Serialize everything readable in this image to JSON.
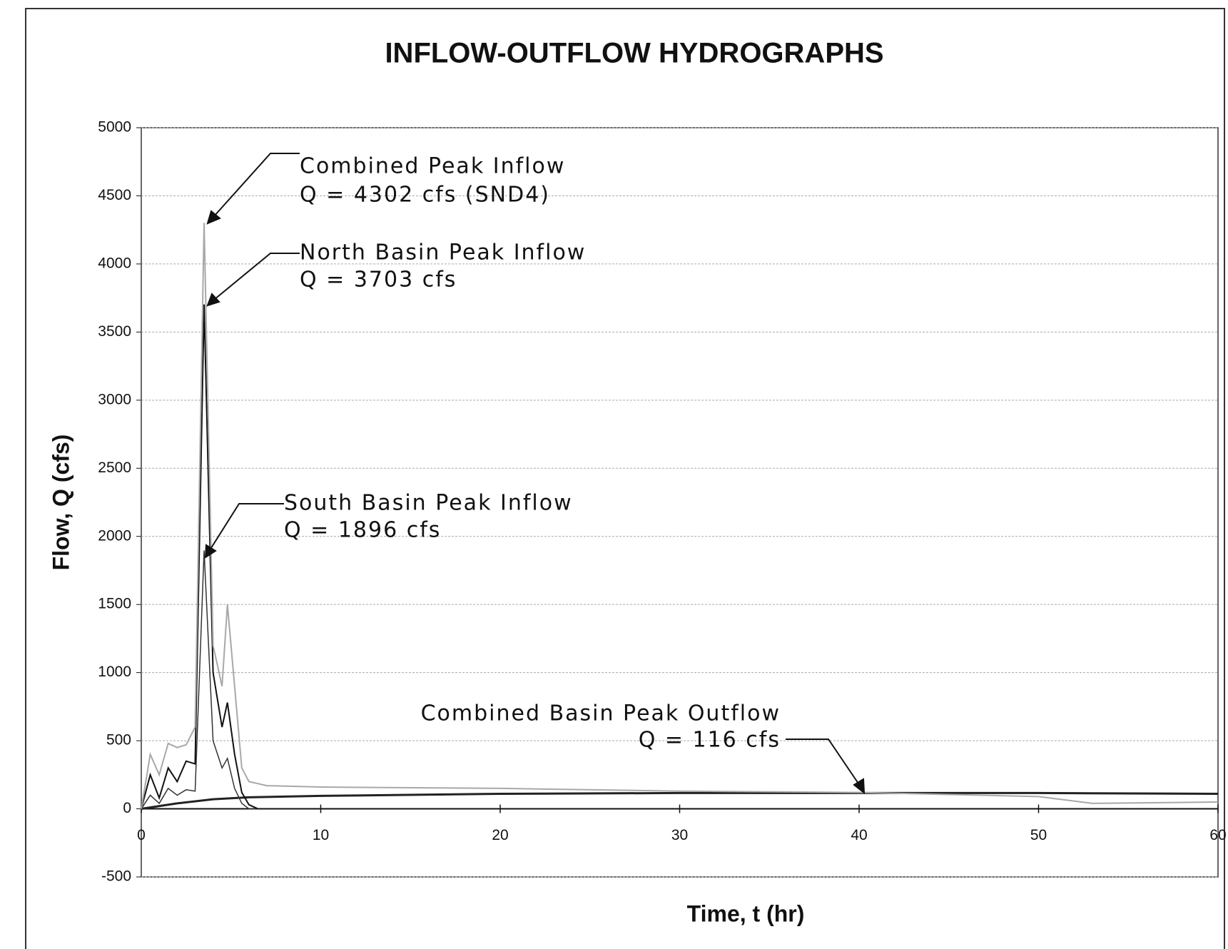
{
  "chart_data": {
    "type": "line",
    "title": "INFLOW-OUTFLOW HYDROGRAPHS",
    "x_label": "Time, t (hr)",
    "y_label": "Flow, Q (cfs)",
    "xlim": [
      0,
      60
    ],
    "xticks": [
      0,
      10,
      20,
      30,
      40,
      50,
      60
    ],
    "ylim": [
      -500,
      5000
    ],
    "yticks": [
      -500,
      0,
      500,
      1000,
      1500,
      2000,
      2500,
      3000,
      3500,
      4000,
      4500,
      5000
    ],
    "grid": true,
    "series": [
      {
        "color": "#a8a8a8",
        "width": 2,
        "x": [
          0,
          0.5,
          1,
          1.5,
          2,
          2.5,
          3,
          3.5,
          4,
          4.5,
          4.8,
          5.2,
          5.6,
          6,
          7,
          10,
          20,
          30,
          40,
          50,
          53,
          60
        ],
        "values": [
          0,
          400,
          250,
          480,
          450,
          470,
          600,
          4302,
          1200,
          900,
          1500,
          900,
          300,
          200,
          170,
          160,
          150,
          130,
          120,
          90,
          40,
          50
        ]
      },
      {
        "color": "#111111",
        "width": 2,
        "x": [
          0,
          0.5,
          1,
          1.5,
          2,
          2.5,
          3,
          3.5,
          4,
          4.5,
          4.8,
          5.2,
          5.6,
          6,
          6.5,
          60
        ],
        "values": [
          0,
          250,
          80,
          300,
          200,
          350,
          330,
          3703,
          1000,
          600,
          780,
          400,
          120,
          30,
          0,
          0
        ]
      },
      {
        "color": "#333333",
        "width": 1.5,
        "x": [
          0,
          0.5,
          1,
          1.5,
          2,
          2.5,
          3,
          3.5,
          4,
          4.5,
          4.8,
          5.2,
          5.6,
          6,
          60
        ],
        "values": [
          0,
          100,
          40,
          150,
          100,
          140,
          130,
          1896,
          500,
          300,
          370,
          150,
          40,
          0,
          0
        ]
      },
      {
        "color": "#222222",
        "width": 3,
        "x": [
          0,
          2,
          4,
          6,
          10,
          20,
          30,
          40,
          50,
          60
        ],
        "values": [
          0,
          40,
          70,
          85,
          95,
          110,
          116,
          116,
          116,
          110
        ]
      }
    ],
    "annotations": [
      [
        "Combined Peak Inflow",
        "Q = 4302 cfs (SND4)"
      ],
      [
        "North Basin Peak Inflow",
        "Q = 3703 cfs"
      ],
      [
        "South Basin Peak Inflow",
        "Q = 1896 cfs"
      ],
      [
        "Combined Basin Peak Outflow",
        "Q = 116 cfs"
      ]
    ]
  }
}
